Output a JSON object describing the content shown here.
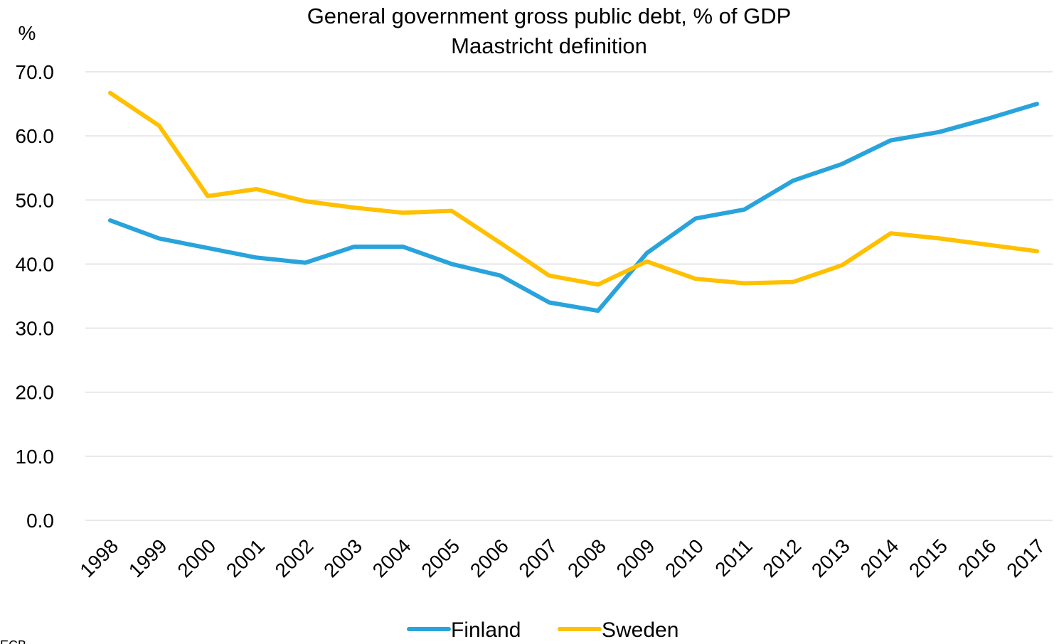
{
  "chart_data": {
    "type": "line",
    "title": "General government gross public debt, % of GDP",
    "subtitle": "Maastricht definition",
    "ylabel": "%",
    "xlabel": "",
    "ylim": [
      0,
      70
    ],
    "yticks": [
      "0.0",
      "10.0",
      "20.0",
      "30.0",
      "40.0",
      "50.0",
      "60.0",
      "70.0"
    ],
    "grid": "horizontal",
    "legend_position": "bottom",
    "categories": [
      "1998",
      "1999",
      "2000",
      "2001",
      "2002",
      "2003",
      "2004",
      "2005",
      "2006",
      "2007",
      "2008",
      "2009",
      "2010",
      "2011",
      "2012",
      "2013",
      "2014",
      "2015",
      "2016",
      "2017"
    ],
    "series": [
      {
        "name": "Finland",
        "color": "#29a3dc",
        "values": [
          46.8,
          44.0,
          42.5,
          41.0,
          40.2,
          42.7,
          42.7,
          40.0,
          38.2,
          34.0,
          32.7,
          41.7,
          47.1,
          48.5,
          53.0,
          55.6,
          59.3,
          60.6,
          62.7,
          65.0
        ]
      },
      {
        "name": "Sweden",
        "color": "#ffc000",
        "values": [
          66.7,
          61.6,
          50.6,
          51.7,
          49.8,
          48.8,
          48.0,
          48.3,
          43.3,
          38.2,
          36.8,
          40.4,
          37.7,
          37.0,
          37.2,
          39.8,
          44.8,
          44.0,
          43.0,
          42.0
        ]
      }
    ]
  },
  "footer": {
    "source": "ECB"
  }
}
